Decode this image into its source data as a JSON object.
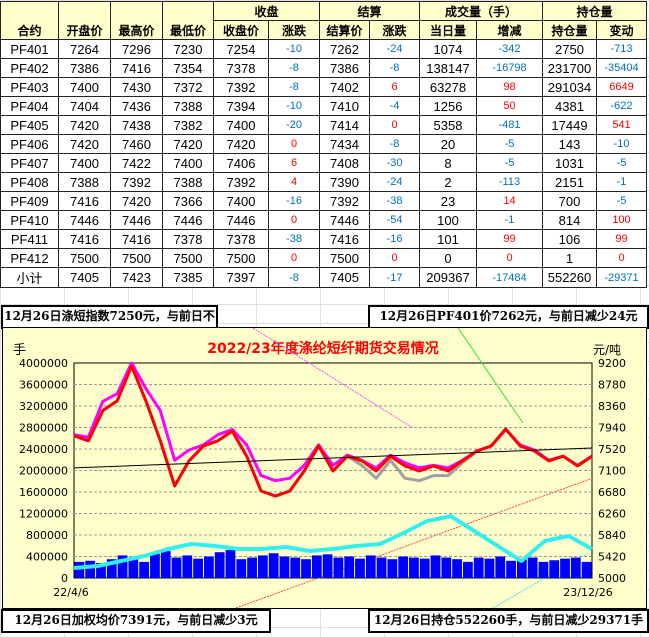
{
  "table": {
    "group_headers": [
      "收盘",
      "结算",
      "成交量（手）",
      "持仓量"
    ],
    "columns": [
      "合约",
      "开盘价",
      "最高价",
      "最低价",
      "收盘价",
      "涨跌",
      "结算价",
      "涨跌",
      "当日量",
      "增减",
      "持仓量",
      "变动"
    ],
    "rows": [
      [
        "PF401",
        "7264",
        "7296",
        "7230",
        "7254",
        "-10",
        "7262",
        "-24",
        "1074",
        "-342",
        "2750",
        "-713"
      ],
      [
        "PF402",
        "7386",
        "7416",
        "7354",
        "7378",
        "-8",
        "7386",
        "-8",
        "138147",
        "-16798",
        "231700",
        "-35404"
      ],
      [
        "PF403",
        "7400",
        "7430",
        "7372",
        "7392",
        "-8",
        "7402",
        "6",
        "63278",
        "98",
        "291034",
        "6649"
      ],
      [
        "PF404",
        "7404",
        "7436",
        "7388",
        "7394",
        "-10",
        "7410",
        "-4",
        "1256",
        "50",
        "4381",
        "-622"
      ],
      [
        "PF405",
        "7420",
        "7438",
        "7382",
        "7400",
        "-20",
        "7414",
        "0",
        "5358",
        "-481",
        "17449",
        "541"
      ],
      [
        "PF406",
        "7420",
        "7460",
        "7420",
        "7420",
        "0",
        "7434",
        "-8",
        "20",
        "-5",
        "143",
        "-10"
      ],
      [
        "PF407",
        "7400",
        "7422",
        "7400",
        "7406",
        "6",
        "7408",
        "-30",
        "8",
        "-5",
        "1031",
        "-5"
      ],
      [
        "PF408",
        "7388",
        "7392",
        "7388",
        "7392",
        "4",
        "7390",
        "-24",
        "2",
        "-113",
        "2151",
        "-1"
      ],
      [
        "PF409",
        "7416",
        "7420",
        "7366",
        "7400",
        "-16",
        "7392",
        "-38",
        "23",
        "14",
        "700",
        "-5"
      ],
      [
        "PF410",
        "7446",
        "7446",
        "7446",
        "7446",
        "0",
        "7446",
        "-54",
        "100",
        "-1",
        "814",
        "100"
      ],
      [
        "PF411",
        "7416",
        "7416",
        "7378",
        "7378",
        "-38",
        "7416",
        "-16",
        "101",
        "99",
        "106",
        "99"
      ],
      [
        "PF412",
        "7500",
        "7500",
        "7500",
        "7500",
        "0",
        "7500",
        "0",
        "0",
        "0",
        "1",
        "0"
      ],
      [
        "小计",
        "7405",
        "7423",
        "7385",
        "7397",
        "-8",
        "7405",
        "-17",
        "209367",
        "-17484",
        "552260",
        "-29371"
      ]
    ]
  },
  "notes": {
    "top_left": "12月26日涤短指数7250元，与前日不变",
    "top_right": "12月26日PF401价7262元，与前日减少24元",
    "bottom_left": "12月26日加权均价7391元，与前日减少3元",
    "bottom_right": "12月26日持仓552260手，与前日减少29371手"
  },
  "chart_data": {
    "type": "line",
    "title": "2022/23年度涤纶短纤期货交易情况",
    "ylabel_left": "手",
    "ylabel_right": "元/吨",
    "x_ticks": [
      "22/4/6",
      "23/12/26"
    ],
    "ylim_left": [
      0,
      4000000
    ],
    "ylim_right": [
      5000,
      9200
    ],
    "left_ticks": [
      "4000000",
      "3600000",
      "3200000",
      "2800000",
      "2400000",
      "2000000",
      "1600000",
      "1200000",
      "800000",
      "400000",
      "0"
    ],
    "right_ticks": [
      "9200",
      "8780",
      "8360",
      "7940",
      "7520",
      "7100",
      "6680",
      "6260",
      "5840",
      "5420",
      "5000"
    ],
    "grid": true,
    "colors": {
      "price": "#FF0000",
      "index": "#FF00FF",
      "settle": "#A0A0A0",
      "open_interest": "#33EEEE",
      "volume": "#0000FF",
      "trend": "#000000"
    },
    "price": [
      7780,
      7680,
      8270,
      8460,
      9140,
      8460,
      7680,
      6800,
      7290,
      7580,
      7680,
      7870,
      7380,
      6700,
      6600,
      6700,
      7090,
      7580,
      7090,
      7380,
      7290,
      7090,
      7380,
      7190,
      7090,
      7190,
      7090,
      7290,
      7480,
      7580,
      7910,
      7580,
      7480,
      7290,
      7380,
      7190,
      7380
    ],
    "index": [
      7800,
      7750,
      8450,
      8600,
      9200,
      8700,
      8270,
      7300,
      7500,
      7600,
      7800,
      7900,
      7600,
      7000,
      6900,
      6950,
      7200,
      7600,
      7200,
      7400,
      7300,
      7150,
      7400,
      7250,
      7150,
      7200,
      7150,
      7300,
      7480,
      7580,
      7900,
      7600,
      7500,
      7300,
      7380,
      7200,
      7380
    ],
    "settle": [
      7780,
      7680,
      8270,
      8460,
      9140,
      8460,
      7680,
      6800,
      7290,
      7580,
      7680,
      7870,
      7380,
      6700,
      6600,
      6700,
      7090,
      7580,
      7090,
      7380,
      7200,
      6950,
      7300,
      6950,
      6900,
      7000,
      7000,
      7250,
      7480,
      7580,
      7910,
      7580,
      7480,
      7290,
      7380,
      7190,
      7380
    ],
    "open_interest": [
      186000,
      223000,
      316000,
      410000,
      540000,
      633000,
      595000,
      540000,
      540000,
      577000,
      502000,
      540000,
      595000,
      633000,
      837000,
      1060000,
      1150000,
      874000,
      595000,
      316000,
      688000,
      781000,
      540000
    ],
    "volume": [
      300000,
      320000,
      280000,
      350000,
      420000,
      380000,
      300000,
      450000,
      500000,
      380000,
      420000,
      360000,
      400000,
      480000,
      520000,
      350000,
      380000,
      420000,
      460000,
      400000,
      380000,
      350000,
      420000,
      440000,
      380000,
      400000,
      360000,
      420000,
      380000,
      350000,
      400000,
      380000,
      360000,
      420000,
      380000,
      350000,
      300000,
      380000,
      360000,
      400000,
      320000,
      350000,
      380000,
      300000,
      330000,
      360000,
      380000,
      300000
    ],
    "trend": [
      7150,
      7540
    ]
  }
}
